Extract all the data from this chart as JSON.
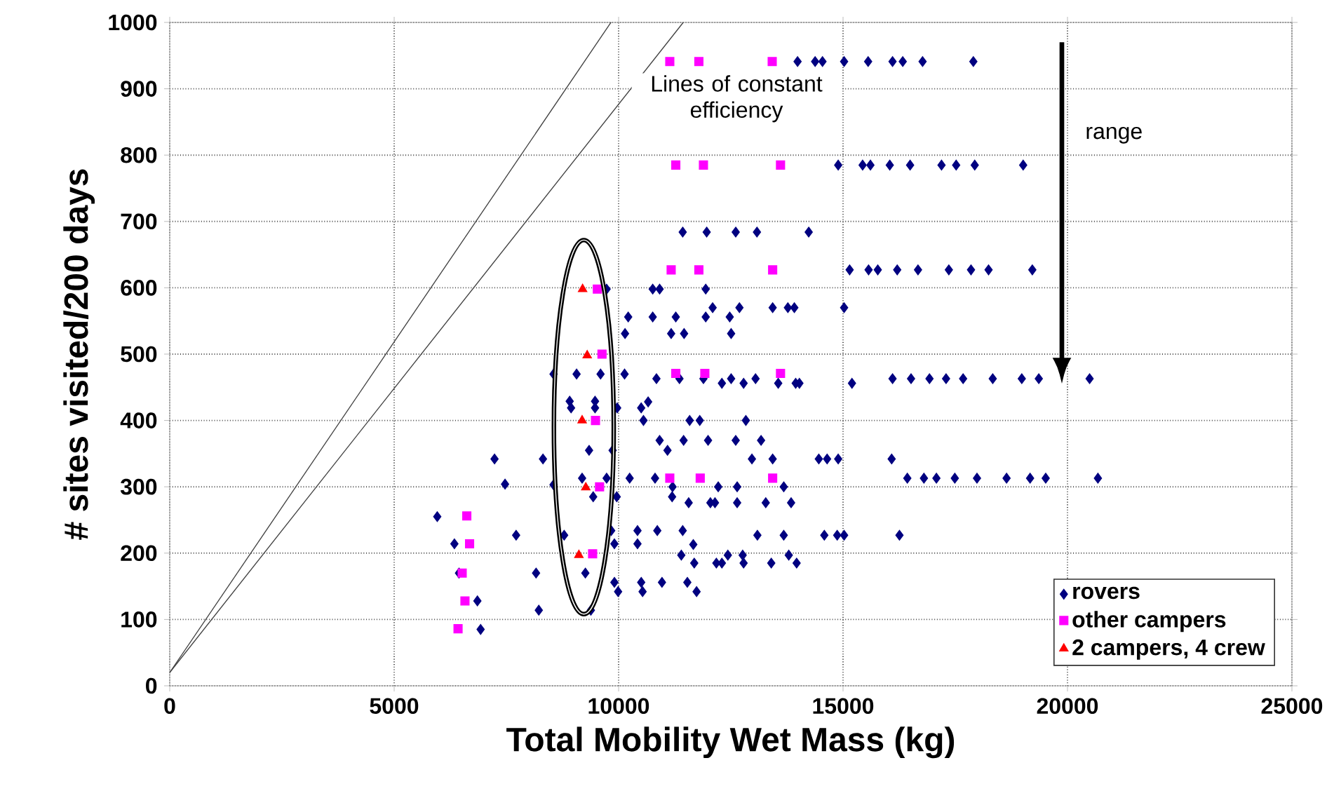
{
  "chart_data": {
    "type": "scatter",
    "xlabel": "Total Mobility Wet Mass (kg)",
    "ylabel": "# sites visited/200 days",
    "xlim": [
      0,
      25000
    ],
    "xticks": [
      0,
      5000,
      10000,
      15000,
      20000,
      25000
    ],
    "ylim": [
      0,
      1000
    ],
    "yticks": [
      0,
      100,
      200,
      300,
      400,
      500,
      600,
      700,
      800,
      900,
      1000
    ],
    "grid": true,
    "legend": "bottom right",
    "annotations": [
      "Lines of constant efficiency",
      "range"
    ],
    "series": [
      {
        "type": "line",
        "color": "#404040",
        "marker": "none",
        "line_style": "solid",
        "x": [
          0,
          9830
        ],
        "values": [
          20,
          1000
        ]
      },
      {
        "type": "line",
        "color": "#404040",
        "marker": "none",
        "line_style": "solid",
        "x": [
          0,
          11440
        ],
        "values": [
          20,
          1000
        ]
      },
      {
        "name": "rovers",
        "color": "#000080",
        "marker": "diamond",
        "x": [
          9733,
          10760,
          10914,
          10214,
          10760,
          10143,
          8550,
          9064,
          9598,
          10133,
          10843,
          8910,
          8941,
          9475,
          9475,
          9968,
          10503,
          10658,
          10554,
          10914,
          9342,
          9866,
          7236,
          8315,
          7470,
          8550,
          9187,
          9733,
          10246,
          10812,
          9434,
          9958,
          5960,
          7717,
          8787,
          9835,
          10421,
          10862,
          6342,
          9906,
          10421,
          8161,
          9259,
          6444,
          9906,
          10503,
          10966,
          9989,
          10534,
          6854,
          8222,
          9382,
          6926,
          11428,
          11962,
          12609,
          13082,
          14235,
          15147,
          15569,
          15774,
          11941,
          12095,
          12692,
          13432,
          13771,
          13915,
          15024,
          11274,
          11941,
          12476,
          11171,
          11459,
          12507,
          11356,
          11890,
          12301,
          12507,
          12785,
          13051,
          13556,
          13945,
          14028,
          15199,
          11583,
          11808,
          12835,
          11448,
          11993,
          12609,
          13174,
          11089,
          12970,
          13432,
          14460,
          14645,
          14892,
          11202,
          12219,
          12641,
          13679,
          11192,
          11561,
          12045,
          12147,
          12641,
          13278,
          13843,
          11428,
          13092,
          13679,
          14583,
          14870,
          15024,
          11664,
          11397,
          12434,
          12764,
          13791,
          11685,
          12178,
          12301,
          12785,
          13401,
          13966,
          11531,
          11737,
          13987,
          14378,
          14542,
          15024,
          15559,
          16103,
          16330,
          16772,
          17903,
          14892,
          15436,
          15610,
          16041,
          16494,
          17194,
          17520,
          17934,
          19013,
          16207,
          16670,
          17357,
          17851,
          18242,
          19217,
          16103,
          16515,
          16926,
          17295,
          17675,
          18335,
          18982,
          19361,
          20493,
          16083,
          16432,
          16802,
          17080,
          17490,
          17984,
          18643,
          19167,
          19515,
          20678,
          16257
        ],
        "values": [
          598,
          598,
          598,
          556,
          556,
          531,
          470,
          470,
          470,
          470,
          463,
          429,
          419,
          429,
          419,
          419,
          419,
          428,
          400,
          370,
          355,
          355,
          342,
          342,
          304,
          303,
          313,
          313,
          313,
          313,
          285,
          285,
          255,
          227,
          227,
          234,
          234,
          234,
          214,
          214,
          214,
          170,
          170,
          170,
          156,
          156,
          156,
          142,
          142,
          128,
          114,
          114,
          85,
          684,
          684,
          684,
          684,
          684,
          627,
          627,
          627,
          598,
          570,
          570,
          570,
          570,
          570,
          570,
          556,
          556,
          556,
          531,
          531,
          531,
          463,
          463,
          456,
          463,
          456,
          463,
          456,
          456,
          456,
          456,
          400,
          400,
          400,
          370,
          370,
          370,
          370,
          355,
          342,
          342,
          342,
          342,
          342,
          300,
          300,
          300,
          300,
          285,
          276,
          276,
          276,
          276,
          276,
          276,
          234,
          227,
          227,
          227,
          227,
          227,
          213,
          197,
          197,
          197,
          197,
          185,
          185,
          185,
          185,
          185,
          185,
          156,
          142,
          941,
          941,
          941,
          941,
          941,
          941,
          941,
          941,
          941,
          785,
          785,
          785,
          785,
          785,
          785,
          785,
          785,
          785,
          627,
          627,
          627,
          627,
          627,
          627,
          463,
          463,
          463,
          463,
          463,
          463,
          463,
          463,
          463,
          342,
          313,
          313,
          313,
          313,
          313,
          313,
          313,
          313,
          313,
          227
        ]
      },
      {
        "name": "other campers",
        "color": "#ff00ff",
        "marker": "square",
        "x": [
          9527,
          9630,
          9485,
          9576,
          9421,
          6618,
          6680,
          6515,
          6577,
          6423,
          11171,
          11788,
          13432,
          11274,
          11921,
          13607,
          11140,
          11818,
          13432,
          11140,
          11788,
          13422,
          11274,
          11890,
          13607
        ],
        "values": [
          598,
          500,
          400,
          300,
          199,
          256,
          214,
          170,
          128,
          86,
          627,
          627,
          627,
          471,
          471,
          471,
          313,
          313,
          313,
          941,
          941,
          941,
          785,
          785,
          785
        ]
      },
      {
        "name": "2 campers, 4 crew",
        "color": "#ff0000",
        "marker": "triangle",
        "x": [
          9198,
          9300,
          9187,
          9269,
          9115
        ],
        "values": [
          598,
          498,
          400,
          299,
          197
        ]
      }
    ]
  }
}
